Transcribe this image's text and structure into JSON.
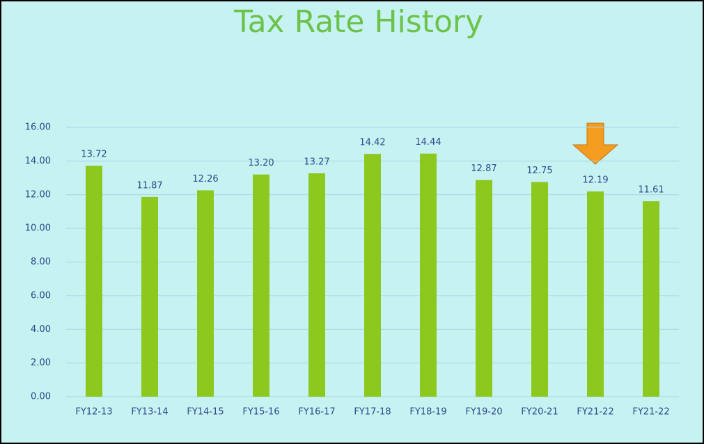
{
  "chart_data": {
    "type": "bar",
    "title": "Tax Rate History",
    "categories": [
      "FY12-13",
      "FY13-14",
      "FY14-15",
      "FY15-16",
      "FY16-17",
      "FY17-18",
      "FY18-19",
      "FY19-20",
      "FY20-21",
      "FY21-22",
      "FY21-22"
    ],
    "values": [
      13.72,
      11.87,
      12.26,
      13.2,
      13.27,
      14.42,
      14.44,
      12.87,
      12.75,
      12.19,
      11.61
    ],
    "value_labels": [
      "13.72",
      "11.87",
      "12.26",
      "13.20",
      "13.27",
      "14.42",
      "14.44",
      "12.87",
      "12.75",
      "12.19",
      "11.61"
    ],
    "color": "#8cc81e",
    "ylim": [
      0,
      16
    ],
    "yticks": [
      {
        "value": 0,
        "label": "0.00"
      },
      {
        "value": 2,
        "label": "2.00"
      },
      {
        "value": 4,
        "label": "4.00"
      },
      {
        "value": 6,
        "label": "6.00"
      },
      {
        "value": 8,
        "label": "8.00"
      },
      {
        "value": 10,
        "label": "10.00"
      },
      {
        "value": 12,
        "label": "12.00"
      },
      {
        "value": 14,
        "label": "14.00"
      },
      {
        "value": 16,
        "label": "16.00"
      }
    ],
    "grid": true
  }
}
